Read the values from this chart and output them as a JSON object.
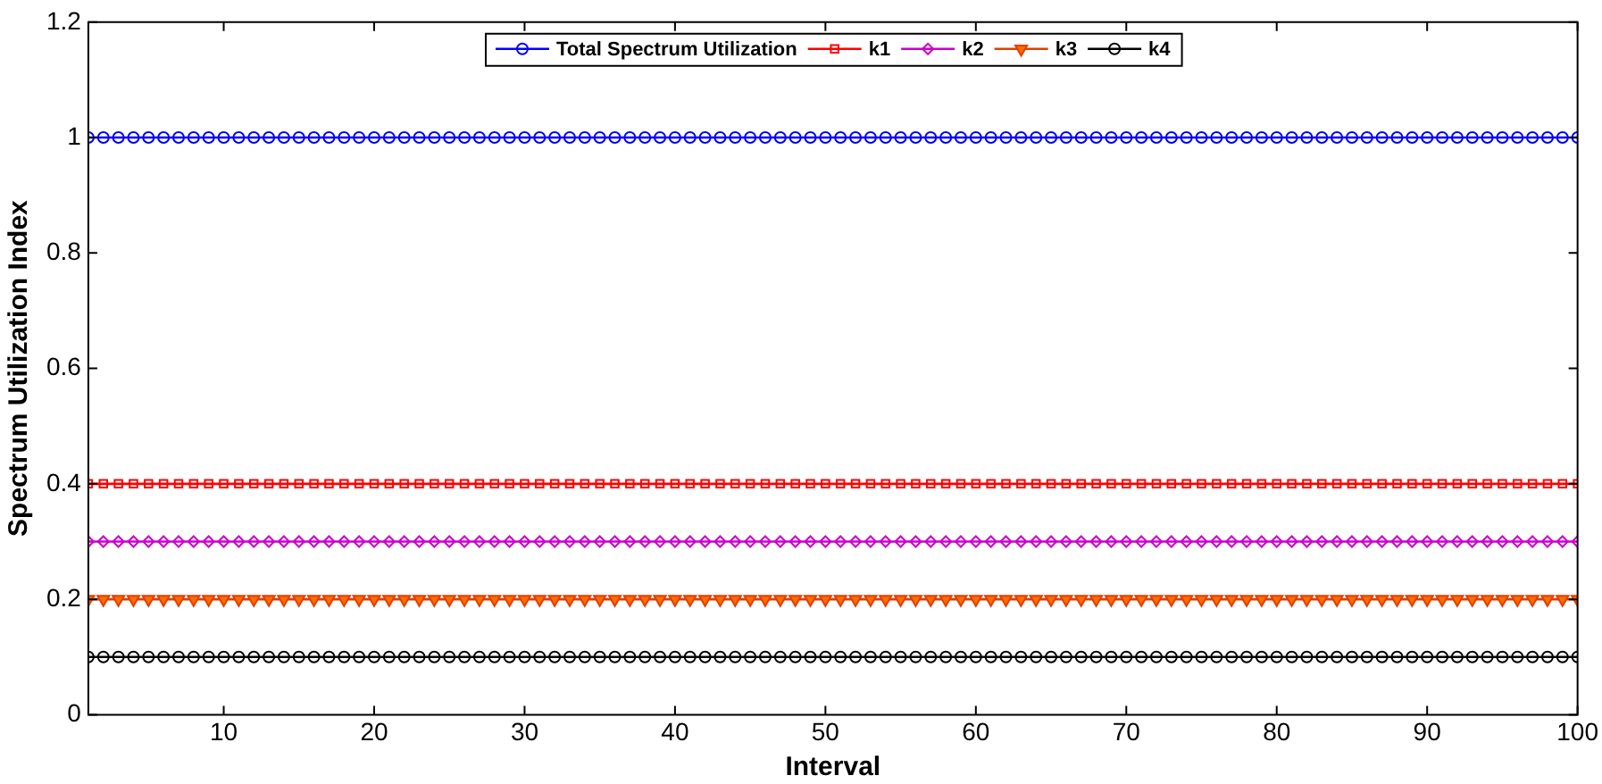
{
  "chart_data": {
    "type": "line",
    "xlabel": "Interval",
    "ylabel": "Spectrum Utilization Index",
    "x": [
      1,
      2,
      3,
      4,
      5,
      6,
      7,
      8,
      9,
      10,
      11,
      12,
      13,
      14,
      15,
      16,
      17,
      18,
      19,
      20,
      21,
      22,
      23,
      24,
      25,
      26,
      27,
      28,
      29,
      30,
      31,
      32,
      33,
      34,
      35,
      36,
      37,
      38,
      39,
      40,
      41,
      42,
      43,
      44,
      45,
      46,
      47,
      48,
      49,
      50,
      51,
      52,
      53,
      54,
      55,
      56,
      57,
      58,
      59,
      60,
      61,
      62,
      63,
      64,
      65,
      66,
      67,
      68,
      69,
      70,
      71,
      72,
      73,
      74,
      75,
      76,
      77,
      78,
      79,
      80,
      81,
      82,
      83,
      84,
      85,
      86,
      87,
      88,
      89,
      90,
      91,
      92,
      93,
      94,
      95,
      96,
      97,
      98,
      99,
      100
    ],
    "series": [
      {
        "name": "Total Spectrum Utilization",
        "color": "#0000ff",
        "marker": "circle",
        "values": [
          1,
          1,
          1,
          1,
          1,
          1,
          1,
          1,
          1,
          1,
          1,
          1,
          1,
          1,
          1,
          1,
          1,
          1,
          1,
          1,
          1,
          1,
          1,
          1,
          1,
          1,
          1,
          1,
          1,
          1,
          1,
          1,
          1,
          1,
          1,
          1,
          1,
          1,
          1,
          1,
          1,
          1,
          1,
          1,
          1,
          1,
          1,
          1,
          1,
          1,
          1,
          1,
          1,
          1,
          1,
          1,
          1,
          1,
          1,
          1,
          1,
          1,
          1,
          1,
          1,
          1,
          1,
          1,
          1,
          1,
          1,
          1,
          1,
          1,
          1,
          1,
          1,
          1,
          1,
          1,
          1,
          1,
          1,
          1,
          1,
          1,
          1,
          1,
          1,
          1,
          1,
          1,
          1,
          1,
          1,
          1,
          1,
          1,
          1,
          1
        ]
      },
      {
        "name": "k1",
        "color": "#ff0000",
        "marker": "square",
        "values": [
          0.4,
          0.4,
          0.4,
          0.4,
          0.4,
          0.4,
          0.4,
          0.4,
          0.4,
          0.4,
          0.4,
          0.4,
          0.4,
          0.4,
          0.4,
          0.4,
          0.4,
          0.4,
          0.4,
          0.4,
          0.4,
          0.4,
          0.4,
          0.4,
          0.4,
          0.4,
          0.4,
          0.4,
          0.4,
          0.4,
          0.4,
          0.4,
          0.4,
          0.4,
          0.4,
          0.4,
          0.4,
          0.4,
          0.4,
          0.4,
          0.4,
          0.4,
          0.4,
          0.4,
          0.4,
          0.4,
          0.4,
          0.4,
          0.4,
          0.4,
          0.4,
          0.4,
          0.4,
          0.4,
          0.4,
          0.4,
          0.4,
          0.4,
          0.4,
          0.4,
          0.4,
          0.4,
          0.4,
          0.4,
          0.4,
          0.4,
          0.4,
          0.4,
          0.4,
          0.4,
          0.4,
          0.4,
          0.4,
          0.4,
          0.4,
          0.4,
          0.4,
          0.4,
          0.4,
          0.4,
          0.4,
          0.4,
          0.4,
          0.4,
          0.4,
          0.4,
          0.4,
          0.4,
          0.4,
          0.4,
          0.4,
          0.4,
          0.4,
          0.4,
          0.4,
          0.4,
          0.4,
          0.4,
          0.4,
          0.4
        ]
      },
      {
        "name": "k2",
        "color": "#cc00cc",
        "marker": "diamond",
        "values": [
          0.3,
          0.3,
          0.3,
          0.3,
          0.3,
          0.3,
          0.3,
          0.3,
          0.3,
          0.3,
          0.3,
          0.3,
          0.3,
          0.3,
          0.3,
          0.3,
          0.3,
          0.3,
          0.3,
          0.3,
          0.3,
          0.3,
          0.3,
          0.3,
          0.3,
          0.3,
          0.3,
          0.3,
          0.3,
          0.3,
          0.3,
          0.3,
          0.3,
          0.3,
          0.3,
          0.3,
          0.3,
          0.3,
          0.3,
          0.3,
          0.3,
          0.3,
          0.3,
          0.3,
          0.3,
          0.3,
          0.3,
          0.3,
          0.3,
          0.3,
          0.3,
          0.3,
          0.3,
          0.3,
          0.3,
          0.3,
          0.3,
          0.3,
          0.3,
          0.3,
          0.3,
          0.3,
          0.3,
          0.3,
          0.3,
          0.3,
          0.3,
          0.3,
          0.3,
          0.3,
          0.3,
          0.3,
          0.3,
          0.3,
          0.3,
          0.3,
          0.3,
          0.3,
          0.3,
          0.3,
          0.3,
          0.3,
          0.3,
          0.3,
          0.3,
          0.3,
          0.3,
          0.3,
          0.3,
          0.3,
          0.3,
          0.3,
          0.3,
          0.3,
          0.3,
          0.3,
          0.3,
          0.3,
          0.3,
          0.3
        ]
      },
      {
        "name": "k3",
        "color": "#e04000",
        "marker": "triangle",
        "values": [
          0.2,
          0.2,
          0.2,
          0.2,
          0.2,
          0.2,
          0.2,
          0.2,
          0.2,
          0.2,
          0.2,
          0.2,
          0.2,
          0.2,
          0.2,
          0.2,
          0.2,
          0.2,
          0.2,
          0.2,
          0.2,
          0.2,
          0.2,
          0.2,
          0.2,
          0.2,
          0.2,
          0.2,
          0.2,
          0.2,
          0.2,
          0.2,
          0.2,
          0.2,
          0.2,
          0.2,
          0.2,
          0.2,
          0.2,
          0.2,
          0.2,
          0.2,
          0.2,
          0.2,
          0.2,
          0.2,
          0.2,
          0.2,
          0.2,
          0.2,
          0.2,
          0.2,
          0.2,
          0.2,
          0.2,
          0.2,
          0.2,
          0.2,
          0.2,
          0.2,
          0.2,
          0.2,
          0.2,
          0.2,
          0.2,
          0.2,
          0.2,
          0.2,
          0.2,
          0.2,
          0.2,
          0.2,
          0.2,
          0.2,
          0.2,
          0.2,
          0.2,
          0.2,
          0.2,
          0.2,
          0.2,
          0.2,
          0.2,
          0.2,
          0.2,
          0.2,
          0.2,
          0.2,
          0.2,
          0.2,
          0.2,
          0.2,
          0.2,
          0.2,
          0.2,
          0.2,
          0.2,
          0.2,
          0.2,
          0.2
        ]
      },
      {
        "name": "k4",
        "color": "#000000",
        "marker": "circle",
        "values": [
          0.1,
          0.1,
          0.1,
          0.1,
          0.1,
          0.1,
          0.1,
          0.1,
          0.1,
          0.1,
          0.1,
          0.1,
          0.1,
          0.1,
          0.1,
          0.1,
          0.1,
          0.1,
          0.1,
          0.1,
          0.1,
          0.1,
          0.1,
          0.1,
          0.1,
          0.1,
          0.1,
          0.1,
          0.1,
          0.1,
          0.1,
          0.1,
          0.1,
          0.1,
          0.1,
          0.1,
          0.1,
          0.1,
          0.1,
          0.1,
          0.1,
          0.1,
          0.1,
          0.1,
          0.1,
          0.1,
          0.1,
          0.1,
          0.1,
          0.1,
          0.1,
          0.1,
          0.1,
          0.1,
          0.1,
          0.1,
          0.1,
          0.1,
          0.1,
          0.1,
          0.1,
          0.1,
          0.1,
          0.1,
          0.1,
          0.1,
          0.1,
          0.1,
          0.1,
          0.1,
          0.1,
          0.1,
          0.1,
          0.1,
          0.1,
          0.1,
          0.1,
          0.1,
          0.1,
          0.1,
          0.1,
          0.1,
          0.1,
          0.1,
          0.1,
          0.1,
          0.1,
          0.1,
          0.1,
          0.1,
          0.1,
          0.1,
          0.1,
          0.1,
          0.1,
          0.1,
          0.1,
          0.1,
          0.1,
          0.1
        ]
      }
    ],
    "xlim": [
      1,
      100
    ],
    "xticks": [
      10,
      20,
      30,
      40,
      50,
      60,
      70,
      80,
      90,
      100
    ],
    "ylim": [
      0,
      1.2
    ],
    "yticks": [
      0,
      0.2,
      0.4,
      0.6,
      0.8,
      1,
      1.2
    ],
    "grid": false,
    "legend": "top",
    "line_style": "solid"
  }
}
